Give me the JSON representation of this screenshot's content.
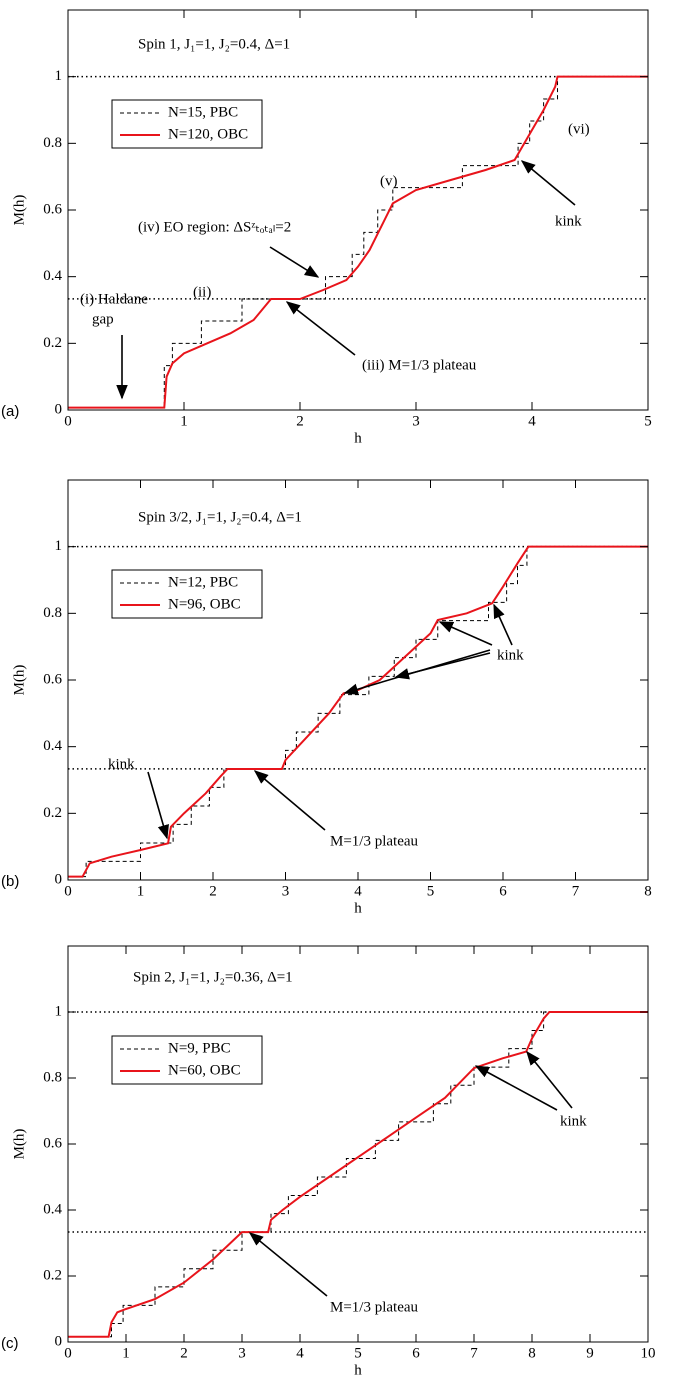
{
  "chart_data": [
    {
      "type": "line",
      "panel_label": "(a)",
      "title": "Spin 1, J₁=1, J₂=0.4, Δ=1",
      "xlabel": "h",
      "ylabel": "M(h)",
      "xlim": [
        0,
        5
      ],
      "ylim": [
        0,
        1.2
      ],
      "xticks": [
        0,
        1,
        2,
        3,
        4,
        5
      ],
      "yticks": [
        0,
        0.2,
        0.4,
        0.6,
        0.8,
        1
      ],
      "hlines": [
        1,
        0.3333
      ],
      "legend": "upper left",
      "series": [
        {
          "name": "N=15, PBC",
          "color": "#000000",
          "linestyle": "dashed",
          "drawstyle": "steps-post",
          "x": [
            0,
            0.83,
            0.9,
            1.15,
            1.5,
            2.22,
            2.45,
            2.55,
            2.67,
            2.8,
            3.4,
            3.88,
            3.98,
            4.1,
            4.22,
            5
          ],
          "values": [
            0.007,
            0.133,
            0.2,
            0.267,
            0.333,
            0.4,
            0.467,
            0.533,
            0.6,
            0.667,
            0.733,
            0.8,
            0.867,
            0.933,
            1,
            1
          ]
        },
        {
          "name": "N=120, OBC",
          "color": "#e8141b",
          "linestyle": "solid",
          "drawstyle": "default",
          "x": [
            0,
            0.83,
            0.85,
            0.9,
            1.0,
            1.2,
            1.4,
            1.6,
            1.75,
            1.9,
            2.0,
            2.2,
            2.4,
            2.5,
            2.6,
            2.7,
            2.8,
            3.0,
            3.3,
            3.6,
            3.85,
            3.9,
            4.0,
            4.1,
            4.2,
            4.22,
            4.25,
            5
          ],
          "values": [
            0.007,
            0.007,
            0.1,
            0.14,
            0.17,
            0.2,
            0.23,
            0.27,
            0.333,
            0.333,
            0.333,
            0.36,
            0.39,
            0.43,
            0.48,
            0.55,
            0.62,
            0.66,
            0.69,
            0.72,
            0.75,
            0.78,
            0.84,
            0.9,
            0.97,
            1,
            1,
            1
          ]
        }
      ],
      "annotations": [
        "(i) Haldane",
        "gap",
        "(ii)",
        "(iii) M=1/3 plateau",
        "(iv) EO region: ΔSᶻₜₒₜₐₗ=2",
        "(v)",
        "(vi)",
        "kink"
      ]
    },
    {
      "type": "line",
      "panel_label": "(b)",
      "title": "Spin 3/2, J₁=1, J₂=0.4, Δ=1",
      "xlabel": "h",
      "ylabel": "M(h)",
      "xlim": [
        0,
        8
      ],
      "ylim": [
        0,
        1.2
      ],
      "xticks": [
        0,
        1,
        2,
        3,
        4,
        5,
        6,
        7,
        8
      ],
      "yticks": [
        0,
        0.2,
        0.4,
        0.6,
        0.8,
        1
      ],
      "hlines": [
        1,
        0.3333
      ],
      "legend": "upper left",
      "series": [
        {
          "name": "N=12, PBC",
          "color": "#000000",
          "linestyle": "dashed",
          "drawstyle": "steps-post",
          "x": [
            0,
            0.25,
            1.0,
            1.45,
            1.7,
            1.95,
            2.15,
            3.0,
            3.15,
            3.45,
            3.75,
            4.15,
            4.5,
            4.8,
            5.1,
            5.8,
            6.05,
            6.2,
            6.33,
            8
          ],
          "values": [
            0.01,
            0.056,
            0.111,
            0.167,
            0.222,
            0.278,
            0.333,
            0.389,
            0.444,
            0.5,
            0.556,
            0.611,
            0.667,
            0.722,
            0.778,
            0.833,
            0.889,
            0.944,
            1,
            1
          ]
        },
        {
          "name": "N=96, OBC",
          "color": "#e8141b",
          "linestyle": "solid",
          "drawstyle": "default",
          "x": [
            0,
            0.2,
            0.3,
            0.6,
            1.0,
            1.38,
            1.42,
            1.6,
            1.9,
            2.1,
            2.2,
            2.5,
            2.95,
            3.0,
            3.3,
            3.6,
            3.8,
            4.0,
            4.3,
            4.6,
            5.0,
            5.1,
            5.5,
            5.85,
            6.0,
            6.2,
            6.35,
            8
          ],
          "values": [
            0.01,
            0.01,
            0.05,
            0.07,
            0.09,
            0.11,
            0.16,
            0.2,
            0.26,
            0.31,
            0.333,
            0.333,
            0.333,
            0.36,
            0.43,
            0.5,
            0.56,
            0.57,
            0.6,
            0.66,
            0.74,
            0.78,
            0.8,
            0.83,
            0.88,
            0.95,
            1,
            1
          ]
        }
      ],
      "annotations": [
        "kink",
        "M=1/3 plateau",
        "kink"
      ]
    },
    {
      "type": "line",
      "panel_label": "(c)",
      "title": "Spin 2, J₁=1, J₂=0.36, Δ=1",
      "xlabel": "h",
      "ylabel": "M(h)",
      "xlim": [
        0,
        10
      ],
      "ylim": [
        0,
        1.2
      ],
      "xticks": [
        0,
        1,
        2,
        3,
        4,
        5,
        6,
        7,
        8,
        9,
        10
      ],
      "yticks": [
        0,
        0.2,
        0.4,
        0.6,
        0.8,
        1
      ],
      "hlines": [
        1,
        0.3333
      ],
      "legend": "upper left",
      "series": [
        {
          "name": "N=9, PBC",
          "color": "#000000",
          "linestyle": "dashed",
          "drawstyle": "steps-post",
          "x": [
            0,
            0.75,
            0.95,
            1.5,
            2.0,
            2.5,
            3.0,
            3.5,
            3.8,
            4.3,
            4.8,
            5.3,
            5.7,
            6.3,
            6.6,
            7.0,
            7.6,
            8.0,
            8.2,
            10
          ],
          "values": [
            0.016,
            0.056,
            0.111,
            0.167,
            0.222,
            0.278,
            0.333,
            0.389,
            0.444,
            0.5,
            0.556,
            0.611,
            0.667,
            0.722,
            0.778,
            0.833,
            0.889,
            0.944,
            1,
            1
          ]
        },
        {
          "name": "N=60, OBC",
          "color": "#e8141b",
          "linestyle": "solid",
          "drawstyle": "default",
          "x": [
            0,
            0.7,
            0.75,
            0.85,
            1.0,
            1.5,
            2.0,
            2.5,
            3.0,
            3.45,
            3.5,
            3.7,
            4.0,
            4.5,
            5.0,
            5.5,
            6.0,
            6.5,
            7.0,
            7.5,
            7.9,
            8.0,
            8.2,
            8.3,
            10
          ],
          "values": [
            0.016,
            0.016,
            0.06,
            0.09,
            0.1,
            0.13,
            0.18,
            0.25,
            0.333,
            0.333,
            0.37,
            0.4,
            0.44,
            0.5,
            0.56,
            0.62,
            0.68,
            0.74,
            0.83,
            0.86,
            0.88,
            0.92,
            0.98,
            1,
            1
          ]
        }
      ],
      "annotations": [
        "kink",
        "M=1/3 plateau"
      ]
    }
  ]
}
